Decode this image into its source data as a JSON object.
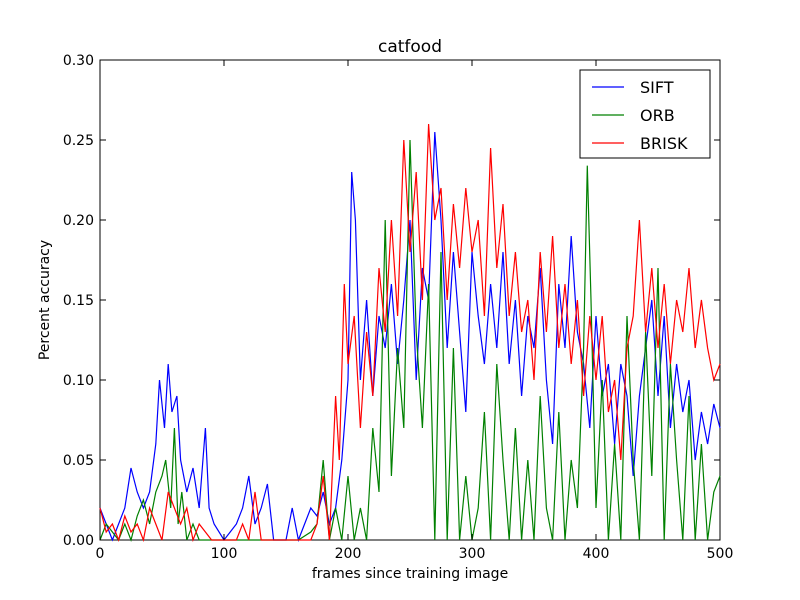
{
  "chart_data": {
    "type": "line",
    "title": "catfood",
    "xlabel": "frames since training image",
    "ylabel": "Percent accuracy",
    "xlim": [
      0,
      500
    ],
    "ylim": [
      0,
      0.3
    ],
    "xticks": [
      0,
      100,
      200,
      300,
      400,
      500
    ],
    "xtick_labels": [
      "0",
      "100",
      "200",
      "300",
      "400",
      "500"
    ],
    "yticks": [
      0,
      0.05,
      0.1,
      0.15,
      0.2,
      0.25,
      0.3
    ],
    "ytick_labels": [
      "0.00",
      "0.05",
      "0.10",
      "0.15",
      "0.20",
      "0.25",
      "0.30"
    ],
    "grid": false,
    "legend_position": "top-right",
    "series": [
      {
        "name": "SIFT",
        "color": "#0000ff",
        "points": [
          [
            0,
            0.02
          ],
          [
            5,
            0.01
          ],
          [
            10,
            0.0
          ],
          [
            15,
            0.01
          ],
          [
            20,
            0.02
          ],
          [
            25,
            0.045
          ],
          [
            30,
            0.03
          ],
          [
            35,
            0.02
          ],
          [
            40,
            0.03
          ],
          [
            45,
            0.06
          ],
          [
            48,
            0.1
          ],
          [
            52,
            0.07
          ],
          [
            55,
            0.11
          ],
          [
            58,
            0.08
          ],
          [
            62,
            0.09
          ],
          [
            65,
            0.05
          ],
          [
            70,
            0.03
          ],
          [
            75,
            0.045
          ],
          [
            80,
            0.02
          ],
          [
            85,
            0.07
          ],
          [
            88,
            0.02
          ],
          [
            92,
            0.01
          ],
          [
            100,
            0.0
          ],
          [
            105,
            0.005
          ],
          [
            110,
            0.01
          ],
          [
            115,
            0.02
          ],
          [
            120,
            0.04
          ],
          [
            125,
            0.01
          ],
          [
            130,
            0.02
          ],
          [
            135,
            0.035
          ],
          [
            140,
            0.0
          ],
          [
            150,
            0.0
          ],
          [
            155,
            0.02
          ],
          [
            160,
            0.0
          ],
          [
            165,
            0.01
          ],
          [
            170,
            0.02
          ],
          [
            175,
            0.015
          ],
          [
            180,
            0.03
          ],
          [
            185,
            0.01
          ],
          [
            190,
            0.02
          ],
          [
            195,
            0.05
          ],
          [
            200,
            0.1
          ],
          [
            203,
            0.23
          ],
          [
            206,
            0.2
          ],
          [
            210,
            0.1
          ],
          [
            215,
            0.15
          ],
          [
            220,
            0.09
          ],
          [
            225,
            0.14
          ],
          [
            230,
            0.12
          ],
          [
            235,
            0.16
          ],
          [
            240,
            0.11
          ],
          [
            245,
            0.15
          ],
          [
            250,
            0.2
          ],
          [
            255,
            0.1
          ],
          [
            260,
            0.17
          ],
          [
            265,
            0.15
          ],
          [
            270,
            0.255
          ],
          [
            275,
            0.2
          ],
          [
            280,
            0.12
          ],
          [
            285,
            0.18
          ],
          [
            290,
            0.13
          ],
          [
            295,
            0.08
          ],
          [
            300,
            0.18
          ],
          [
            305,
            0.14
          ],
          [
            310,
            0.11
          ],
          [
            315,
            0.16
          ],
          [
            320,
            0.12
          ],
          [
            325,
            0.18
          ],
          [
            330,
            0.11
          ],
          [
            335,
            0.15
          ],
          [
            340,
            0.09
          ],
          [
            345,
            0.14
          ],
          [
            350,
            0.12
          ],
          [
            355,
            0.17
          ],
          [
            360,
            0.1
          ],
          [
            365,
            0.06
          ],
          [
            370,
            0.16
          ],
          [
            375,
            0.12
          ],
          [
            380,
            0.19
          ],
          [
            385,
            0.13
          ],
          [
            390,
            0.11
          ],
          [
            395,
            0.07
          ],
          [
            400,
            0.14
          ],
          [
            405,
            0.09
          ],
          [
            410,
            0.11
          ],
          [
            415,
            0.06
          ],
          [
            420,
            0.11
          ],
          [
            425,
            0.09
          ],
          [
            430,
            0.04
          ],
          [
            435,
            0.09
          ],
          [
            440,
            0.12
          ],
          [
            445,
            0.15
          ],
          [
            450,
            0.09
          ],
          [
            455,
            0.14
          ],
          [
            460,
            0.07
          ],
          [
            465,
            0.11
          ],
          [
            470,
            0.08
          ],
          [
            475,
            0.1
          ],
          [
            480,
            0.05
          ],
          [
            485,
            0.08
          ],
          [
            490,
            0.06
          ],
          [
            495,
            0.085
          ],
          [
            500,
            0.07
          ]
        ]
      },
      {
        "name": "ORB",
        "color": "#008000",
        "points": [
          [
            0,
            0.0
          ],
          [
            5,
            0.01
          ],
          [
            10,
            0.005
          ],
          [
            15,
            0.0
          ],
          [
            20,
            0.01
          ],
          [
            25,
            0.0
          ],
          [
            30,
            0.015
          ],
          [
            35,
            0.025
          ],
          [
            40,
            0.01
          ],
          [
            45,
            0.03
          ],
          [
            50,
            0.04
          ],
          [
            53,
            0.05
          ],
          [
            57,
            0.02
          ],
          [
            60,
            0.07
          ],
          [
            63,
            0.01
          ],
          [
            66,
            0.03
          ],
          [
            70,
            0.0
          ],
          [
            75,
            0.01
          ],
          [
            80,
            0.0
          ],
          [
            90,
            0.0
          ],
          [
            100,
            0.0
          ],
          [
            110,
            0.0
          ],
          [
            120,
            0.0
          ],
          [
            130,
            0.0
          ],
          [
            140,
            0.0
          ],
          [
            150,
            0.0
          ],
          [
            160,
            0.0
          ],
          [
            170,
            0.005
          ],
          [
            175,
            0.01
          ],
          [
            180,
            0.05
          ],
          [
            185,
            0.0
          ],
          [
            190,
            0.02
          ],
          [
            195,
            0.0
          ],
          [
            200,
            0.04
          ],
          [
            205,
            0.0
          ],
          [
            210,
            0.02
          ],
          [
            215,
            0.0
          ],
          [
            220,
            0.07
          ],
          [
            225,
            0.03
          ],
          [
            230,
            0.2
          ],
          [
            235,
            0.04
          ],
          [
            240,
            0.12
          ],
          [
            245,
            0.07
          ],
          [
            250,
            0.25
          ],
          [
            255,
            0.13
          ],
          [
            260,
            0.07
          ],
          [
            265,
            0.16
          ],
          [
            270,
            0.0
          ],
          [
            275,
            0.18
          ],
          [
            280,
            0.0
          ],
          [
            285,
            0.12
          ],
          [
            290,
            0.0
          ],
          [
            295,
            0.04
          ],
          [
            300,
            0.0
          ],
          [
            305,
            0.02
          ],
          [
            310,
            0.08
          ],
          [
            315,
            0.0
          ],
          [
            320,
            0.11
          ],
          [
            325,
            0.05
          ],
          [
            330,
            0.0
          ],
          [
            335,
            0.07
          ],
          [
            340,
            0.0
          ],
          [
            345,
            0.05
          ],
          [
            350,
            0.0
          ],
          [
            355,
            0.09
          ],
          [
            360,
            0.02
          ],
          [
            365,
            0.0
          ],
          [
            370,
            0.08
          ],
          [
            375,
            0.0
          ],
          [
            380,
            0.05
          ],
          [
            385,
            0.02
          ],
          [
            390,
            0.12
          ],
          [
            393,
            0.234
          ],
          [
            396,
            0.15
          ],
          [
            400,
            0.02
          ],
          [
            405,
            0.1
          ],
          [
            410,
            0.0
          ],
          [
            415,
            0.06
          ],
          [
            420,
            0.0
          ],
          [
            425,
            0.14
          ],
          [
            430,
            0.05
          ],
          [
            435,
            0.0
          ],
          [
            440,
            0.13
          ],
          [
            445,
            0.04
          ],
          [
            450,
            0.17
          ],
          [
            455,
            0.0
          ],
          [
            460,
            0.11
          ],
          [
            465,
            0.05
          ],
          [
            470,
            0.0
          ],
          [
            475,
            0.09
          ],
          [
            480,
            0.0
          ],
          [
            485,
            0.06
          ],
          [
            490,
            0.0
          ],
          [
            495,
            0.03
          ],
          [
            500,
            0.04
          ]
        ]
      },
      {
        "name": "BRISK",
        "color": "#ff0000",
        "points": [
          [
            0,
            0.02
          ],
          [
            5,
            0.005
          ],
          [
            10,
            0.01
          ],
          [
            15,
            0.0
          ],
          [
            20,
            0.015
          ],
          [
            25,
            0.005
          ],
          [
            30,
            0.01
          ],
          [
            35,
            0.0
          ],
          [
            40,
            0.02
          ],
          [
            45,
            0.01
          ],
          [
            50,
            0.0
          ],
          [
            55,
            0.03
          ],
          [
            60,
            0.02
          ],
          [
            65,
            0.01
          ],
          [
            70,
            0.02
          ],
          [
            75,
            0.0
          ],
          [
            80,
            0.01
          ],
          [
            90,
            0.0
          ],
          [
            100,
            0.0
          ],
          [
            110,
            0.0
          ],
          [
            115,
            0.01
          ],
          [
            120,
            0.0
          ],
          [
            125,
            0.03
          ],
          [
            130,
            0.0
          ],
          [
            140,
            0.0
          ],
          [
            150,
            0.0
          ],
          [
            160,
            0.0
          ],
          [
            170,
            0.0
          ],
          [
            175,
            0.01
          ],
          [
            180,
            0.04
          ],
          [
            185,
            0.0
          ],
          [
            190,
            0.09
          ],
          [
            193,
            0.05
          ],
          [
            197,
            0.16
          ],
          [
            200,
            0.11
          ],
          [
            205,
            0.14
          ],
          [
            210,
            0.07
          ],
          [
            215,
            0.13
          ],
          [
            220,
            0.09
          ],
          [
            225,
            0.17
          ],
          [
            230,
            0.13
          ],
          [
            235,
            0.2
          ],
          [
            240,
            0.14
          ],
          [
            245,
            0.25
          ],
          [
            250,
            0.18
          ],
          [
            255,
            0.23
          ],
          [
            260,
            0.15
          ],
          [
            265,
            0.26
          ],
          [
            270,
            0.2
          ],
          [
            275,
            0.22
          ],
          [
            280,
            0.15
          ],
          [
            285,
            0.21
          ],
          [
            290,
            0.17
          ],
          [
            295,
            0.22
          ],
          [
            300,
            0.18
          ],
          [
            305,
            0.2
          ],
          [
            310,
            0.14
          ],
          [
            315,
            0.245
          ],
          [
            320,
            0.17
          ],
          [
            325,
            0.21
          ],
          [
            330,
            0.14
          ],
          [
            335,
            0.18
          ],
          [
            340,
            0.13
          ],
          [
            345,
            0.15
          ],
          [
            350,
            0.1
          ],
          [
            355,
            0.18
          ],
          [
            360,
            0.13
          ],
          [
            365,
            0.19
          ],
          [
            370,
            0.12
          ],
          [
            375,
            0.16
          ],
          [
            380,
            0.11
          ],
          [
            385,
            0.15
          ],
          [
            390,
            0.09
          ],
          [
            395,
            0.14
          ],
          [
            400,
            0.1
          ],
          [
            405,
            0.14
          ],
          [
            410,
            0.08
          ],
          [
            415,
            0.1
          ],
          [
            420,
            0.05
          ],
          [
            425,
            0.12
          ],
          [
            430,
            0.14
          ],
          [
            435,
            0.2
          ],
          [
            440,
            0.13
          ],
          [
            445,
            0.17
          ],
          [
            450,
            0.12
          ],
          [
            455,
            0.16
          ],
          [
            460,
            0.11
          ],
          [
            465,
            0.15
          ],
          [
            470,
            0.13
          ],
          [
            475,
            0.17
          ],
          [
            480,
            0.12
          ],
          [
            485,
            0.15
          ],
          [
            490,
            0.12
          ],
          [
            495,
            0.1
          ],
          [
            500,
            0.11
          ]
        ]
      }
    ]
  }
}
